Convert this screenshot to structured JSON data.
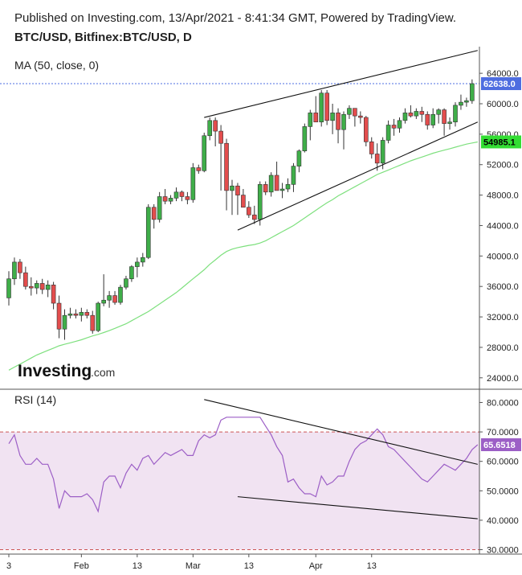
{
  "header": {
    "published": "Published on Investing.com, 13/Apr/2021 - 8:41:34 GMT, Powered by TradingView.",
    "symbol": "BTC/USD, Bitfinex:BTC/USD, D"
  },
  "branding": {
    "logo_text": "Investing",
    "logo_suffix": ".com"
  },
  "colors": {
    "up": "#3fae49",
    "down": "#e34d4d",
    "ma": "#7ee07e",
    "rsi": "#9c5fc6",
    "rsi_band": "#f1e3f2",
    "price_tag": "#4e6de0",
    "ma_tag": "#33dd33",
    "rsi_tag": "#9c5fc6"
  },
  "chart_data": [
    {
      "type": "candlestick",
      "title": "MA (50, close, 0)",
      "y_ticks": [
        "64000.0",
        "60000.0",
        "56000.0",
        "52000.0",
        "48000.0",
        "44000.0",
        "40000.0",
        "36000.0",
        "32000.0",
        "28000.0",
        "24000.0"
      ],
      "y_tick_values": [
        64000,
        60000,
        56000,
        52000,
        48000,
        44000,
        40000,
        36000,
        32000,
        28000,
        24000
      ],
      "ylim": [
        22500,
        67500
      ],
      "last_price": 62638.0,
      "last_price_label": "62638.0",
      "ma_last": 54985.1,
      "ma_last_label": "54985.1",
      "ohlc": [
        [
          34500,
          38000,
          33500,
          37000
        ],
        [
          37000,
          39800,
          36200,
          39200
        ],
        [
          39200,
          39600,
          37000,
          37800
        ],
        [
          37800,
          38600,
          35600,
          36000
        ],
        [
          36000,
          37200,
          34800,
          35800
        ],
        [
          35800,
          36800,
          35000,
          36400
        ],
        [
          36400,
          37000,
          35000,
          35600
        ],
        [
          35600,
          36800,
          34600,
          36200
        ],
        [
          36200,
          36600,
          33000,
          33800
        ],
        [
          33800,
          34800,
          29200,
          30400
        ],
        [
          30400,
          33000,
          29000,
          32200
        ],
        [
          32200,
          33200,
          31800,
          32400
        ],
        [
          32400,
          33000,
          31800,
          32200
        ],
        [
          32200,
          33200,
          31400,
          32600
        ],
        [
          32600,
          33000,
          31800,
          32200
        ],
        [
          32200,
          32800,
          29800,
          30200
        ],
        [
          30200,
          34000,
          30000,
          33800
        ],
        [
          33800,
          37600,
          33400,
          34200
        ],
        [
          34200,
          35400,
          33200,
          34800
        ],
        [
          34800,
          35400,
          33600,
          33900
        ],
        [
          33900,
          36200,
          33600,
          35900
        ],
        [
          35900,
          37400,
          35600,
          37000
        ],
        [
          37000,
          38800,
          36600,
          38600
        ],
        [
          38600,
          39800,
          37200,
          39200
        ],
        [
          39200,
          40400,
          38600,
          39800
        ],
        [
          39800,
          46800,
          39600,
          46400
        ],
        [
          46400,
          46800,
          43600,
          44800
        ],
        [
          44800,
          48400,
          44400,
          47800
        ],
        [
          47800,
          48800,
          46800,
          47200
        ],
        [
          47200,
          48000,
          46800,
          47600
        ],
        [
          47600,
          49000,
          47200,
          48400
        ],
        [
          48400,
          48600,
          47200,
          47800
        ],
        [
          47800,
          48400,
          46800,
          47400
        ],
        [
          47400,
          52200,
          47000,
          51600
        ],
        [
          51600,
          52000,
          50800,
          51200
        ],
        [
          51200,
          56200,
          51000,
          55800
        ],
        [
          55800,
          58200,
          55200,
          57800
        ],
        [
          57800,
          58200,
          54400,
          56400
        ],
        [
          56400,
          57200,
          48600,
          54800
        ],
        [
          54800,
          55400,
          46000,
          48600
        ],
        [
          48600,
          50000,
          45400,
          49200
        ],
        [
          49200,
          49600,
          45400,
          48000
        ],
        [
          48000,
          48800,
          46600,
          46400
        ],
        [
          46400,
          47200,
          45000,
          45400
        ],
        [
          45400,
          46600,
          44200,
          44800
        ],
        [
          44800,
          49800,
          44000,
          49400
        ],
        [
          49400,
          49800,
          48000,
          48400
        ],
        [
          48400,
          51000,
          47800,
          50600
        ],
        [
          50600,
          52400,
          48600,
          48600
        ],
        [
          48600,
          49600,
          47600,
          48800
        ],
        [
          48800,
          50200,
          48400,
          49400
        ],
        [
          49400,
          52200,
          48400,
          51800
        ],
        [
          51800,
          54000,
          51000,
          53800
        ],
        [
          53800,
          57400,
          53600,
          57000
        ],
        [
          57000,
          59200,
          55200,
          58800
        ],
        [
          58800,
          61000,
          57600,
          57600
        ],
        [
          57600,
          61800,
          57000,
          61400
        ],
        [
          61400,
          61800,
          57200,
          57800
        ],
        [
          57800,
          60000,
          56000,
          58800
        ],
        [
          58800,
          59400,
          54800,
          56600
        ],
        [
          56600,
          59000,
          54000,
          58600
        ],
        [
          58600,
          59800,
          58000,
          59400
        ],
        [
          59400,
          59400,
          57000,
          58400
        ],
        [
          58400,
          59000,
          57400,
          58200
        ],
        [
          58200,
          58400,
          54400,
          55000
        ],
        [
          55000,
          55600,
          52800,
          53400
        ],
        [
          53400,
          54800,
          51200,
          52200
        ],
        [
          52200,
          55600,
          51400,
          55200
        ],
        [
          55200,
          57800,
          54800,
          57200
        ],
        [
          57200,
          58000,
          55800,
          56800
        ],
        [
          56800,
          58200,
          56200,
          57800
        ],
        [
          57800,
          59400,
          57400,
          58800
        ],
        [
          58800,
          59800,
          58200,
          58400
        ],
        [
          58400,
          59400,
          58000,
          59000
        ],
        [
          59000,
          59600,
          57600,
          58600
        ],
        [
          58600,
          59000,
          56600,
          57200
        ],
        [
          57200,
          59400,
          56800,
          58600
        ],
        [
          58600,
          59400,
          57400,
          59200
        ],
        [
          59200,
          59400,
          55800,
          57400
        ],
        [
          57400,
          58200,
          56600,
          57600
        ],
        [
          57600,
          60200,
          57000,
          59800
        ],
        [
          59800,
          61200,
          59200,
          60200
        ],
        [
          60200,
          60800,
          59600,
          60400
        ],
        [
          60400,
          63200,
          60000,
          62638
        ]
      ],
      "ma_values": [
        25000,
        25400,
        25800,
        26200,
        26600,
        27000,
        27300,
        27600,
        27900,
        28200,
        28400,
        28600,
        28800,
        29000,
        29250,
        29500,
        29700,
        29950,
        30200,
        30500,
        30800,
        31100,
        31500,
        31900,
        32300,
        32700,
        33200,
        33700,
        34200,
        34700,
        35200,
        35800,
        36400,
        37000,
        37600,
        38200,
        38900,
        39500,
        40100,
        40600,
        40900,
        41100,
        41250,
        41400,
        41500,
        41700,
        42000,
        42400,
        42800,
        43200,
        43600,
        44000,
        44500,
        45000,
        45500,
        46000,
        46500,
        47000,
        47400,
        47900,
        48300,
        48700,
        49100,
        49500,
        49900,
        50300,
        50700,
        51000,
        51300,
        51600,
        51900,
        52200,
        52500,
        52750,
        53000,
        53250,
        53500,
        53700,
        53900,
        54100,
        54300,
        54500,
        54700,
        54850,
        54985.1
      ]
    },
    {
      "type": "line",
      "title": "RSI (14)",
      "y_ticks": [
        "80.0000",
        "70.0000",
        "60.0000",
        "50.0000",
        "40.0000",
        "30.0000"
      ],
      "y_tick_values": [
        80,
        70,
        60,
        50,
        40,
        30
      ],
      "ylim": [
        28.5,
        84.5
      ],
      "band": [
        30,
        70
      ],
      "last_value": 65.6518,
      "last_value_label": "65.6518",
      "values": [
        66,
        69,
        62,
        59,
        59,
        61,
        59,
        59,
        54,
        44,
        50,
        48,
        48,
        48,
        49,
        47,
        43,
        53,
        55,
        55,
        51,
        56,
        59,
        57,
        61,
        62,
        59,
        61,
        63,
        62,
        63,
        64,
        62,
        62,
        67,
        69,
        68,
        69,
        74,
        75,
        75,
        75,
        75,
        75,
        75,
        75,
        72,
        69,
        65,
        62,
        53,
        54,
        51,
        49,
        49,
        48,
        55,
        52,
        53,
        55,
        55,
        60,
        64,
        66,
        67,
        69,
        71,
        69,
        65,
        64,
        62,
        60,
        58,
        56,
        54,
        53,
        55,
        57,
        59,
        58,
        57,
        59,
        61,
        64,
        65.65
      ],
      "x_labels": [
        "3",
        "Feb",
        "13",
        "Mar",
        "13",
        "Apr",
        "13"
      ],
      "x_label_index": [
        0,
        13,
        23,
        33,
        43,
        55,
        65
      ]
    }
  ]
}
